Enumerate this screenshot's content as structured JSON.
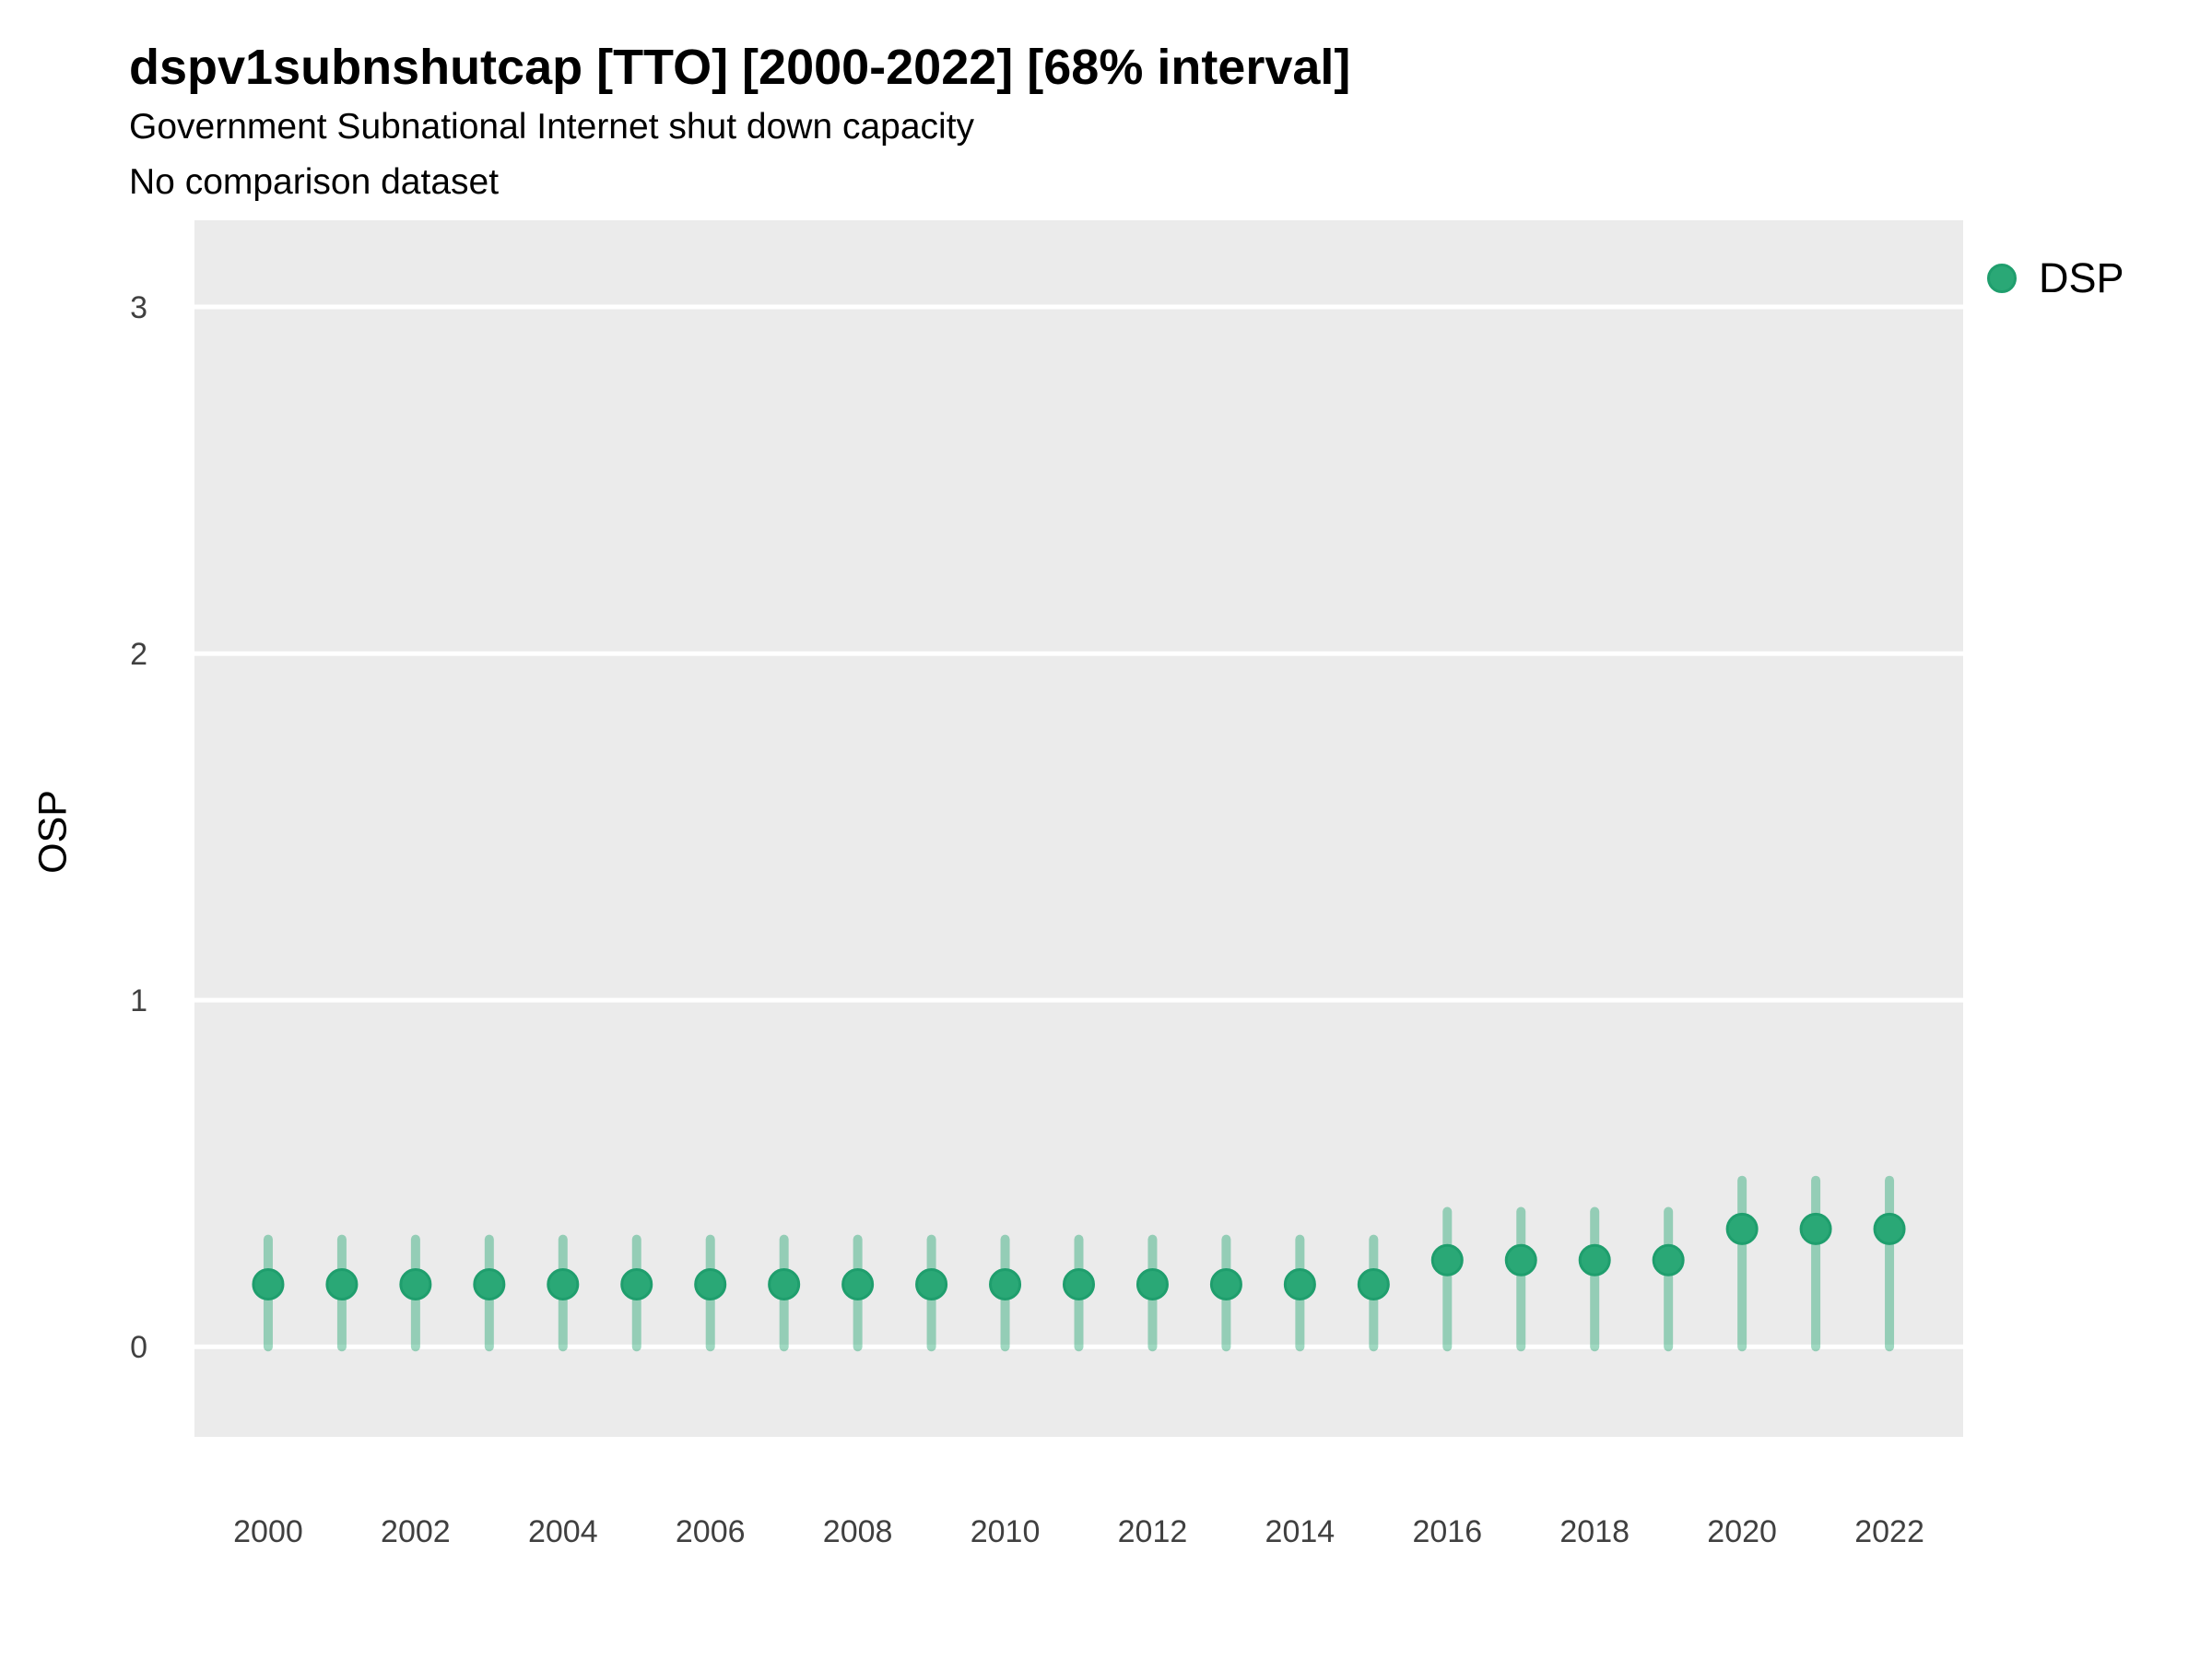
{
  "chart_data": {
    "type": "scatter",
    "title": "dspv1subnshutcap [TTO] [2000-2022] [68% interval]",
    "subtitle1": "Government Subnational Internet shut down capacity",
    "subtitle2": "No comparison dataset",
    "ylabel": "OSP",
    "xlabel": "",
    "legend": {
      "label": "DSP",
      "position": "right"
    },
    "x": [
      2000,
      2001,
      2002,
      2003,
      2004,
      2005,
      2006,
      2007,
      2008,
      2009,
      2010,
      2011,
      2012,
      2013,
      2014,
      2015,
      2016,
      2017,
      2018,
      2019,
      2020,
      2021,
      2022
    ],
    "series": [
      {
        "name": "DSP",
        "estimate": [
          0.18,
          0.18,
          0.18,
          0.18,
          0.18,
          0.18,
          0.18,
          0.18,
          0.18,
          0.18,
          0.18,
          0.18,
          0.18,
          0.18,
          0.18,
          0.18,
          0.25,
          0.25,
          0.25,
          0.25,
          0.34,
          0.34,
          0.34
        ],
        "lower68": [
          0,
          0,
          0,
          0,
          0,
          0,
          0,
          0,
          0,
          0,
          0,
          0,
          0,
          0,
          0,
          0,
          0,
          0,
          0,
          0,
          0,
          0,
          0
        ],
        "upper68": [
          0.31,
          0.31,
          0.31,
          0.31,
          0.31,
          0.31,
          0.31,
          0.31,
          0.31,
          0.31,
          0.31,
          0.31,
          0.31,
          0.31,
          0.31,
          0.31,
          0.39,
          0.39,
          0.39,
          0.39,
          0.48,
          0.48,
          0.48
        ]
      }
    ],
    "xticks": [
      2000,
      2002,
      2004,
      2006,
      2008,
      2010,
      2012,
      2014,
      2016,
      2018,
      2020,
      2022
    ],
    "yticks": [
      0,
      1,
      2,
      3
    ],
    "xlim": [
      1999,
      2023
    ],
    "ylim": [
      -0.26,
      3.25
    ],
    "grid": "horizontal-white-on-gray",
    "legend_position": "right",
    "colors": {
      "point": "#2aa876",
      "point_stroke": "#1f9e6d",
      "interval": "rgba(42,168,118,0.45)",
      "panel_bg": "#ebebeb",
      "gridline": "#ffffff",
      "title_text": "#000000",
      "axis_text": "#404040"
    }
  }
}
